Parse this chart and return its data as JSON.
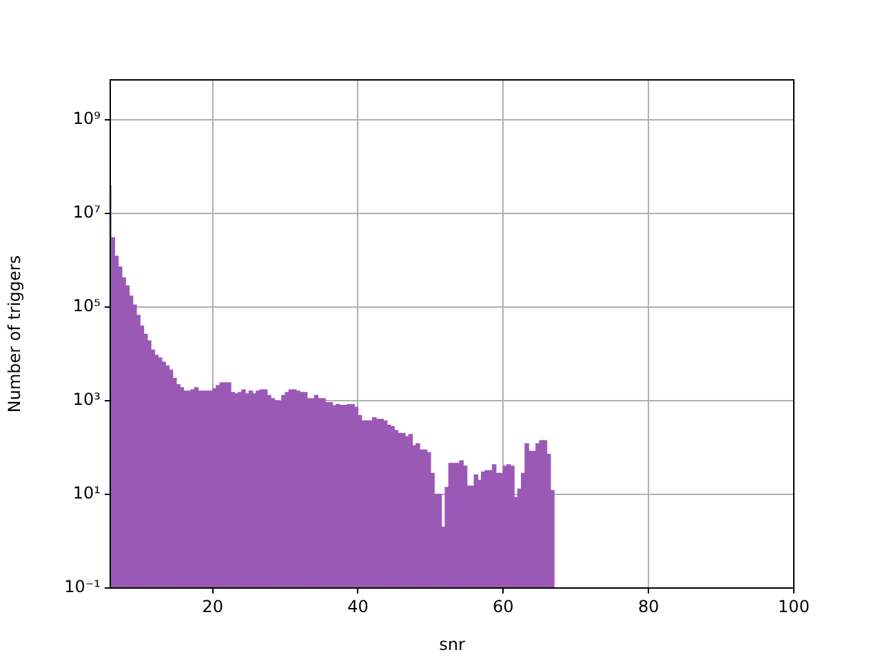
{
  "chart_data": {
    "type": "histogram",
    "xlabel": "snr",
    "ylabel": "Number of triggers",
    "color": "#9b59b6",
    "log": "y",
    "grid": true,
    "bins": [
      5.9,
      6.0,
      6.5,
      7.0,
      7.5,
      8.0,
      8.5,
      9.0,
      9.5,
      10.0,
      10.5,
      11.0,
      11.5,
      12.0,
      12.5,
      13.0,
      13.5,
      14.0,
      14.5,
      15.0,
      15.5,
      16.0,
      16.5,
      17.0,
      17.5,
      18.0,
      18.5,
      19.0,
      19.5,
      20.0,
      20.5,
      21.0,
      21.5,
      22.0,
      22.5,
      23.0,
      23.5,
      24.0,
      24.5,
      25.0,
      25.5,
      26.0,
      26.5,
      27.0,
      27.5,
      28.0,
      28.5,
      29.0,
      29.5,
      30.0,
      30.5,
      31.0,
      31.5,
      32.0,
      32.5,
      33.0,
      33.5,
      34.0,
      34.5,
      35.0,
      35.5,
      36.0,
      36.5,
      37.0,
      37.5,
      38.0,
      38.5,
      39.0,
      39.5,
      40.0,
      40.5,
      41.0,
      41.5,
      42.0,
      42.5,
      43.0,
      43.5,
      44.0,
      44.5,
      45.0,
      45.5,
      46.0,
      46.5,
      47.0,
      47.5,
      48.0,
      48.5,
      49.0,
      49.5,
      50.0,
      50.5,
      51.0,
      51.5,
      52.0,
      52.5,
      53.0,
      53.5,
      54.0,
      54.5,
      55.0,
      55.5,
      56.0,
      56.5,
      57.0,
      57.5,
      58.0,
      58.5,
      59.0,
      59.5,
      60.0,
      60.5,
      61.0,
      61.5,
      62.0,
      62.5,
      63.0,
      63.5,
      64.0,
      64.5,
      65.0,
      65.5,
      66.0,
      66.5,
      67.0
    ],
    "values": [
      39000000,
      3000000,
      1200000,
      710000,
      420000,
      280000,
      170000,
      110000,
      66000,
      39000,
      26000,
      19000,
      12000,
      9300,
      8100,
      6600,
      5500,
      4500,
      3000,
      2200,
      1900,
      1600,
      1600,
      1700,
      1900,
      1600,
      1600,
      1600,
      1600,
      1800,
      2100,
      2400,
      2400,
      2400,
      1500,
      1400,
      1500,
      1700,
      1400,
      1600,
      1400,
      1600,
      1700,
      1700,
      1300,
      1100,
      1000,
      980,
      1300,
      1500,
      1700,
      1700,
      1600,
      1500,
      1500,
      1100,
      1100,
      1300,
      1100,
      1100,
      910,
      910,
      780,
      830,
      790,
      790,
      830,
      830,
      720,
      480,
      370,
      370,
      370,
      430,
      400,
      400,
      370,
      300,
      280,
      230,
      200,
      200,
      170,
      190,
      110,
      120,
      89,
      89,
      78,
      28,
      10,
      10,
      2,
      14,
      46,
      46,
      46,
      52,
      40,
      15,
      15,
      26,
      20,
      30,
      32,
      32,
      43,
      28,
      28,
      40,
      43,
      40,
      8.5,
      13,
      28,
      120,
      83,
      83,
      120,
      140,
      140,
      72,
      12
    ],
    "xlim": [
      5.9,
      100
    ],
    "xticks": [
      20,
      40,
      60,
      80,
      100
    ],
    "ylim": [
      0.1,
      7000000000
    ],
    "yticks": [
      {
        "value": 0.1,
        "label": "10⁻¹"
      },
      {
        "value": 10,
        "label": "10¹"
      },
      {
        "value": 1000,
        "label": "10³"
      },
      {
        "value": 100000,
        "label": "10⁵"
      },
      {
        "value": 10000000,
        "label": "10⁷"
      },
      {
        "value": 1000000000,
        "label": "10⁹"
      }
    ]
  }
}
